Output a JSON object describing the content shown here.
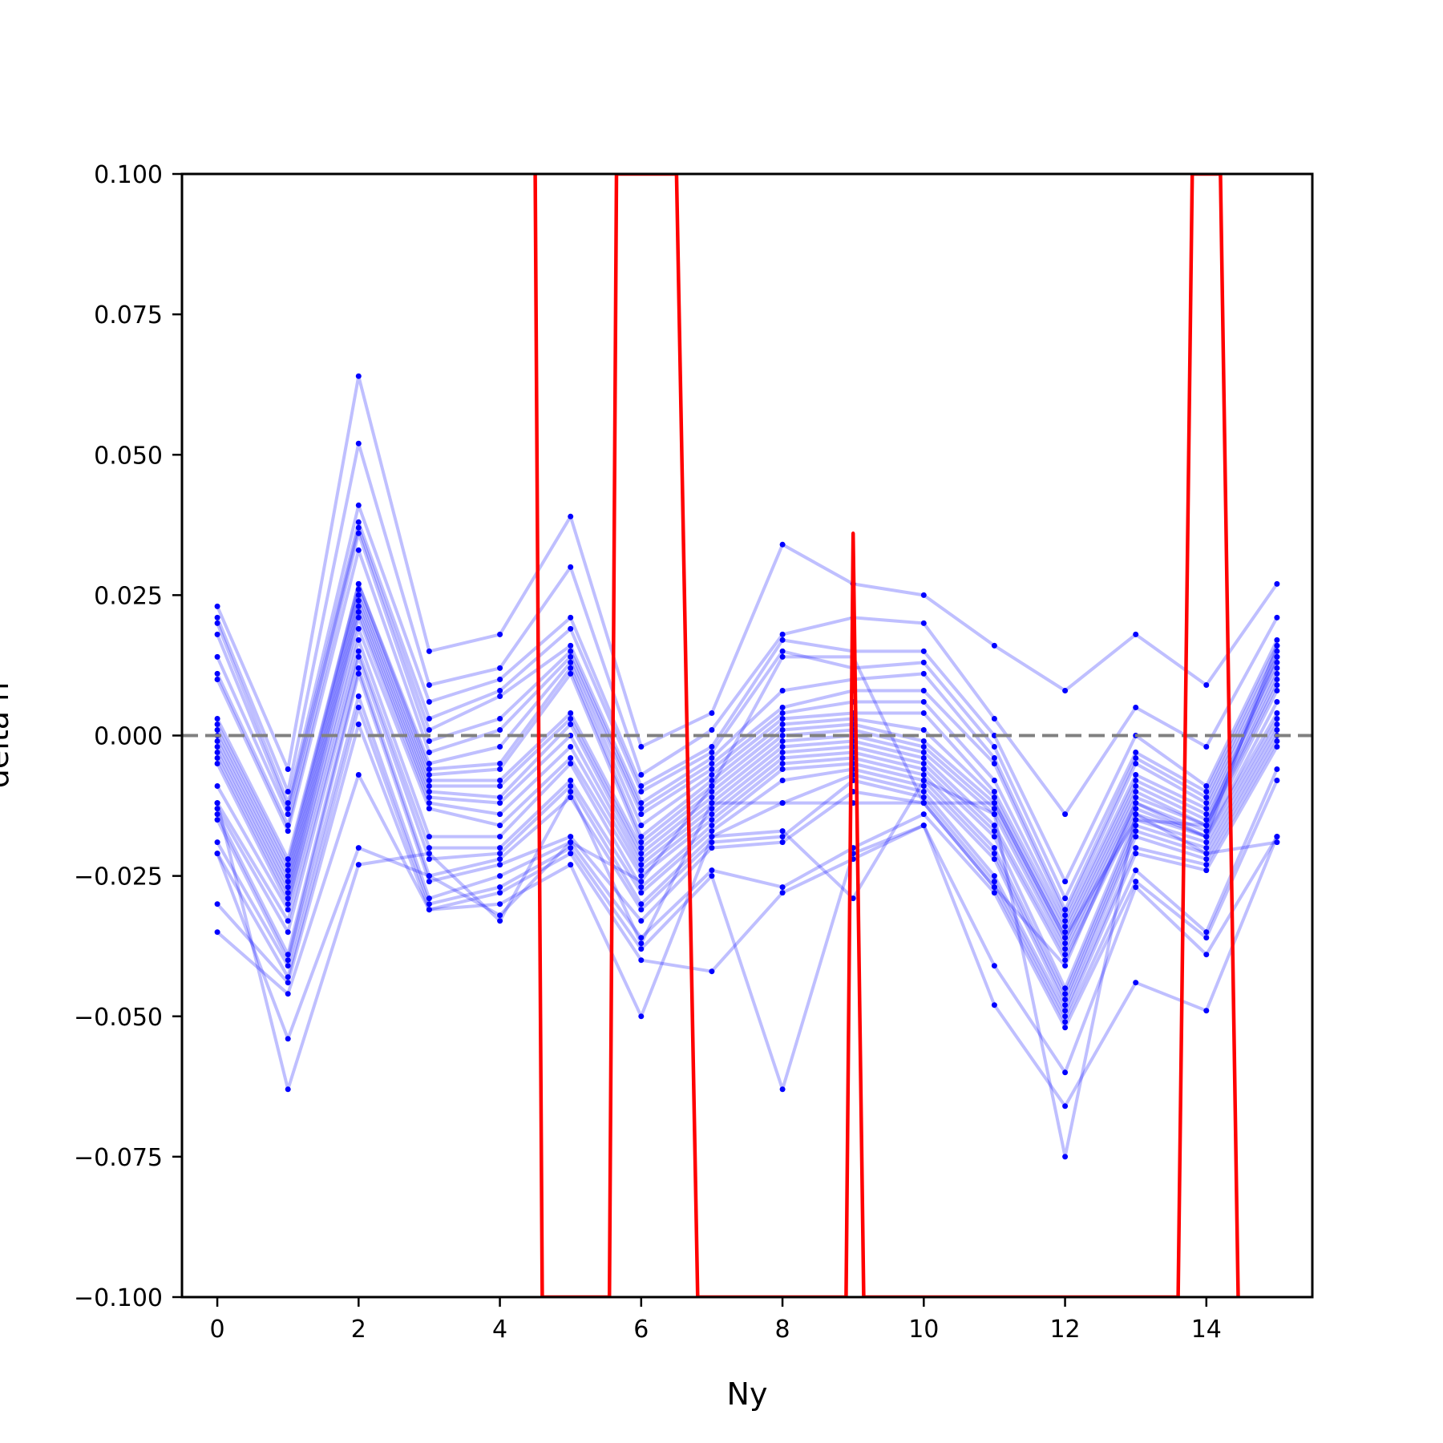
{
  "chart_data": {
    "type": "line",
    "title": "",
    "xlabel": "Ny",
    "ylabel": "delta n",
    "xlim": [
      -0.5,
      15.5
    ],
    "ylim": [
      -0.1,
      0.1
    ],
    "x_ticks": [
      0,
      2,
      4,
      6,
      8,
      10,
      12,
      14
    ],
    "x_tick_labels": [
      "0",
      "2",
      "4",
      "6",
      "8",
      "10",
      "12",
      "14"
    ],
    "y_ticks": [
      -0.1,
      -0.075,
      -0.05,
      -0.025,
      0.0,
      0.025,
      0.05,
      0.075,
      0.1
    ],
    "y_tick_labels": [
      "−0.100",
      "−0.075",
      "−0.050",
      "−0.025",
      "0.000",
      "0.025",
      "0.050",
      "0.075",
      "0.100"
    ],
    "grid": false,
    "legend": "none",
    "reference_line": {
      "y": 0.0,
      "style": "dashed",
      "color": "#808080"
    },
    "colors": {
      "series": "#0000ff",
      "mean": "#ff0000"
    },
    "x": [
      0,
      1,
      2,
      3,
      4,
      5,
      6,
      7,
      8,
      9,
      10,
      11,
      12,
      13,
      14,
      15
    ],
    "series": [
      {
        "values": [
          0.023,
          -0.006,
          0.064,
          0.015,
          0.018,
          0.039,
          -0.002,
          0.004,
          0.034,
          0.027,
          0.025,
          0.016,
          0.008,
          0.018,
          0.009,
          0.027
        ]
      },
      {
        "values": [
          0.021,
          -0.01,
          0.052,
          0.009,
          0.012,
          0.03,
          -0.007,
          0.001,
          0.018,
          0.021,
          0.02,
          0.003,
          -0.014,
          0.005,
          -0.002,
          0.021
        ]
      },
      {
        "values": [
          0.02,
          -0.012,
          0.041,
          0.006,
          0.01,
          0.021,
          -0.009,
          -0.002,
          0.017,
          0.015,
          0.015,
          0.0,
          -0.026,
          0.0,
          -0.009,
          0.017
        ]
      },
      {
        "values": [
          0.018,
          -0.013,
          0.038,
          0.003,
          0.008,
          0.019,
          -0.01,
          -0.003,
          0.015,
          0.012,
          0.013,
          -0.002,
          -0.029,
          -0.003,
          -0.01,
          0.016
        ]
      },
      {
        "values": [
          0.014,
          -0.014,
          0.037,
          0.001,
          0.007,
          0.016,
          -0.012,
          -0.004,
          0.008,
          0.01,
          0.011,
          -0.004,
          -0.031,
          -0.004,
          -0.011,
          0.015
        ]
      },
      {
        "values": [
          0.011,
          -0.016,
          0.036,
          -0.001,
          0.003,
          0.015,
          -0.013,
          -0.005,
          0.005,
          0.008,
          0.008,
          -0.005,
          -0.032,
          -0.005,
          -0.012,
          0.014
        ]
      },
      {
        "values": [
          0.01,
          -0.017,
          0.033,
          -0.003,
          0.001,
          0.014,
          -0.014,
          -0.006,
          0.004,
          0.006,
          0.006,
          -0.008,
          -0.033,
          -0.007,
          -0.013,
          0.013
        ]
      },
      {
        "values": [
          0.003,
          -0.022,
          0.027,
          -0.005,
          -0.002,
          0.013,
          -0.016,
          -0.007,
          0.003,
          0.004,
          0.004,
          -0.01,
          -0.034,
          -0.008,
          -0.014,
          0.012
        ]
      },
      {
        "values": [
          0.002,
          -0.023,
          0.027,
          -0.006,
          -0.005,
          0.012,
          -0.018,
          -0.008,
          0.002,
          0.003,
          0.001,
          -0.011,
          -0.035,
          -0.009,
          -0.015,
          0.011
        ]
      },
      {
        "values": [
          0.001,
          -0.024,
          0.026,
          -0.007,
          -0.006,
          0.011,
          -0.019,
          -0.009,
          0.001,
          0.002,
          -0.001,
          -0.012,
          -0.036,
          -0.01,
          -0.016,
          0.01
        ]
      },
      {
        "values": [
          0.0,
          -0.025,
          0.025,
          -0.008,
          -0.008,
          0.004,
          -0.02,
          -0.01,
          0.0,
          0.001,
          -0.002,
          -0.013,
          -0.037,
          -0.011,
          -0.016,
          0.009
        ]
      },
      {
        "values": [
          -0.001,
          -0.026,
          0.024,
          -0.009,
          -0.009,
          0.003,
          -0.021,
          -0.011,
          -0.001,
          0.0,
          -0.003,
          -0.014,
          -0.038,
          -0.012,
          -0.017,
          0.008
        ]
      },
      {
        "values": [
          -0.002,
          -0.027,
          0.023,
          -0.01,
          -0.011,
          0.002,
          -0.022,
          -0.012,
          -0.002,
          -0.001,
          -0.004,
          -0.016,
          -0.039,
          -0.013,
          -0.018,
          0.006
        ]
      },
      {
        "values": [
          -0.003,
          -0.028,
          0.022,
          -0.011,
          -0.012,
          0.0,
          -0.023,
          -0.013,
          -0.003,
          -0.002,
          -0.005,
          -0.017,
          -0.04,
          -0.014,
          -0.018,
          0.004
        ]
      },
      {
        "values": [
          -0.004,
          -0.029,
          0.021,
          -0.012,
          -0.014,
          -0.002,
          -0.024,
          -0.014,
          -0.004,
          -0.003,
          -0.006,
          -0.018,
          -0.045,
          -0.015,
          -0.019,
          0.003
        ]
      },
      {
        "values": [
          -0.005,
          -0.03,
          0.019,
          -0.013,
          -0.016,
          -0.004,
          -0.025,
          -0.015,
          -0.005,
          -0.004,
          -0.007,
          -0.02,
          -0.046,
          -0.016,
          -0.02,
          0.002
        ]
      },
      {
        "values": [
          -0.009,
          -0.031,
          0.017,
          -0.018,
          -0.018,
          -0.005,
          -0.027,
          -0.016,
          -0.006,
          -0.005,
          -0.008,
          -0.021,
          -0.047,
          -0.017,
          -0.021,
          0.001
        ]
      },
      {
        "values": [
          -0.012,
          -0.033,
          0.015,
          -0.02,
          -0.02,
          -0.008,
          -0.028,
          -0.017,
          -0.008,
          -0.006,
          -0.009,
          -0.022,
          -0.048,
          -0.018,
          -0.022,
          0.0
        ]
      },
      {
        "values": [
          -0.013,
          -0.035,
          0.014,
          -0.022,
          -0.021,
          -0.009,
          -0.03,
          -0.018,
          -0.012,
          -0.007,
          -0.01,
          -0.025,
          -0.049,
          -0.02,
          -0.023,
          -0.001
        ]
      },
      {
        "values": [
          -0.014,
          -0.039,
          0.012,
          -0.025,
          -0.022,
          -0.011,
          -0.031,
          -0.019,
          -0.018,
          -0.008,
          -0.011,
          -0.026,
          -0.05,
          -0.021,
          -0.024,
          -0.002
        ]
      },
      {
        "values": [
          -0.015,
          -0.04,
          0.011,
          -0.026,
          -0.023,
          -0.018,
          -0.033,
          -0.02,
          -0.019,
          -0.01,
          -0.012,
          -0.027,
          -0.051,
          -0.024,
          -0.035,
          -0.006
        ]
      },
      {
        "values": [
          -0.019,
          -0.041,
          0.007,
          -0.029,
          -0.025,
          -0.019,
          -0.036,
          -0.024,
          -0.027,
          -0.02,
          -0.014,
          -0.028,
          -0.052,
          -0.026,
          -0.036,
          -0.008
        ]
      },
      {
        "values": [
          -0.021,
          -0.043,
          0.005,
          -0.03,
          -0.027,
          -0.02,
          -0.038,
          -0.025,
          -0.063,
          -0.021,
          -0.016,
          -0.041,
          -0.06,
          -0.027,
          -0.039,
          -0.018
        ]
      },
      {
        "values": [
          -0.03,
          -0.044,
          0.002,
          -0.031,
          -0.028,
          -0.021,
          -0.04,
          -0.042,
          -0.028,
          -0.022,
          -0.016,
          -0.048,
          -0.066,
          -0.044,
          -0.049,
          -0.018
        ]
      },
      {
        "values": [
          -0.035,
          -0.046,
          -0.007,
          -0.031,
          -0.03,
          -0.023,
          -0.05,
          -0.018,
          -0.017,
          -0.029,
          -0.008,
          -0.014,
          -0.075,
          -0.014,
          -0.021,
          -0.019
        ]
      },
      {
        "values": [
          -0.021,
          -0.054,
          -0.02,
          -0.025,
          -0.032,
          -0.019,
          -0.026,
          -0.009,
          0.014,
          0.014,
          -0.012,
          -0.012,
          -0.036,
          -0.015,
          -0.016,
          0.014
        ]
      },
      {
        "values": [
          -0.012,
          -0.063,
          -0.023,
          -0.021,
          -0.033,
          -0.01,
          -0.037,
          -0.012,
          -0.012,
          -0.012,
          -0.012,
          -0.027,
          -0.041,
          -0.012,
          -0.018,
          0.016
        ]
      }
    ],
    "mean_line": {
      "x": [
        4.5,
        4.6,
        5.55,
        5.65,
        6.5,
        6.8,
        8.9,
        9.0,
        9.15,
        13.6,
        13.8,
        14.2,
        14.45
      ],
      "y": [
        0.1,
        -0.1,
        -0.1,
        0.1,
        0.1,
        -0.1,
        -0.1,
        0.036,
        -0.1,
        -0.1,
        0.1,
        0.1,
        -0.1
      ]
    }
  }
}
